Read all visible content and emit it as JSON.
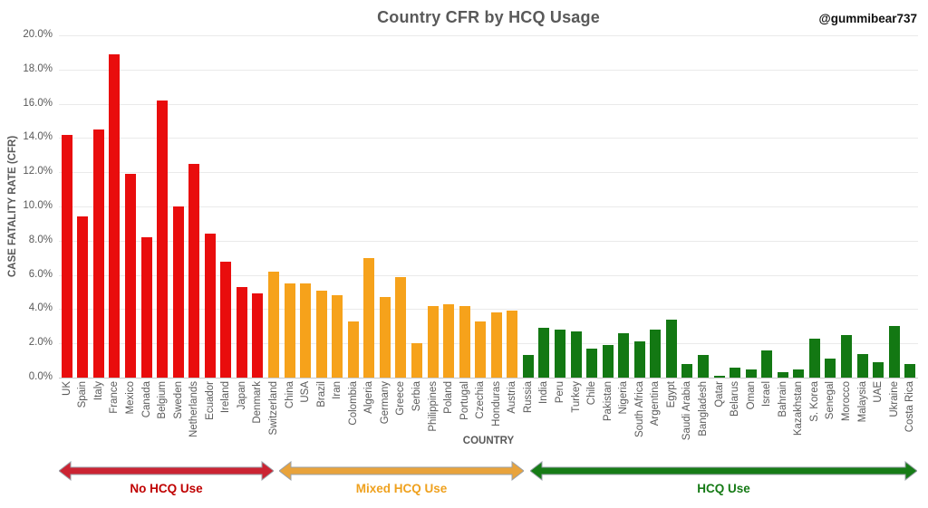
{
  "chart": {
    "title": "Country CFR by HCQ Usage",
    "attribution": "@gummibear737",
    "x_axis_title": "COUNTRY",
    "y_axis_title": "CASE FATALITY RATE (CFR)",
    "y_tick_labels": [
      "0.0%",
      "2.0%",
      "4.0%",
      "6.0%",
      "8.0%",
      "10.0%",
      "12.0%",
      "14.0%",
      "16.0%",
      "18.0%",
      "20.0%"
    ]
  },
  "chart_data": {
    "type": "bar",
    "title": "Country CFR by HCQ Usage",
    "xlabel": "COUNTRY",
    "ylabel": "CASE FATALITY RATE (CFR)",
    "ylim": [
      0,
      20
    ],
    "y_unit": "percent",
    "grid": true,
    "legend": "none",
    "categories": [
      "UK",
      "Spain",
      "Italy",
      "France",
      "Mexico",
      "Canada",
      "Belgium",
      "Sweden",
      "Netherlands",
      "Ecuador",
      "Ireland",
      "Japan",
      "Denmark",
      "Switzerland",
      "China",
      "USA",
      "Brazil",
      "Iran",
      "Colombia",
      "Algeria",
      "Germany",
      "Greece",
      "Serbia",
      "Philippines",
      "Poland",
      "Portugal",
      "Czechia",
      "Honduras",
      "Austria",
      "Russia",
      "India",
      "Peru",
      "Turkey",
      "Chile",
      "Pakistan",
      "Nigeria",
      "South Africa",
      "Argentina",
      "Egypt",
      "Saudi Arabia",
      "Bangladesh",
      "Qatar",
      "Belarus",
      "Oman",
      "Israel",
      "Bahrain",
      "Kazakhstan",
      "S. Korea",
      "Senegal",
      "Morocco",
      "Malaysia",
      "UAE",
      "Ukraine",
      "Costa Rica"
    ],
    "values": [
      14.2,
      9.4,
      14.5,
      18.9,
      11.9,
      8.2,
      16.2,
      10.0,
      12.5,
      8.4,
      6.8,
      5.3,
      4.9,
      6.2,
      5.5,
      5.5,
      5.1,
      4.8,
      3.3,
      7.0,
      4.7,
      5.9,
      2.0,
      4.2,
      4.3,
      4.2,
      3.3,
      3.8,
      3.9,
      1.3,
      2.9,
      2.8,
      2.7,
      1.7,
      1.9,
      2.6,
      2.1,
      2.8,
      3.4,
      0.8,
      1.3,
      0.1,
      0.6,
      0.5,
      1.6,
      0.3,
      0.5,
      2.3,
      1.1,
      2.5,
      1.4,
      0.9,
      3.0,
      0.8
    ],
    "groups": [
      {
        "label": "No HCQ Use",
        "start_index": 0,
        "end_index": 12,
        "bar_color": "#e90d0d",
        "arrow_color": "#cb2433",
        "label_color": "#c00000"
      },
      {
        "label": "Mixed HCQ Use",
        "start_index": 13,
        "end_index": 28,
        "bar_color": "#f6a21b",
        "arrow_color": "#e8a33c",
        "label_color": "#efa11e"
      },
      {
        "label": "HCQ Use",
        "start_index": 29,
        "end_index": 53,
        "bar_color": "#137813",
        "arrow_color": "#177c17",
        "label_color": "#157a15"
      }
    ],
    "arrow_outline_color": "#99a0a8"
  }
}
